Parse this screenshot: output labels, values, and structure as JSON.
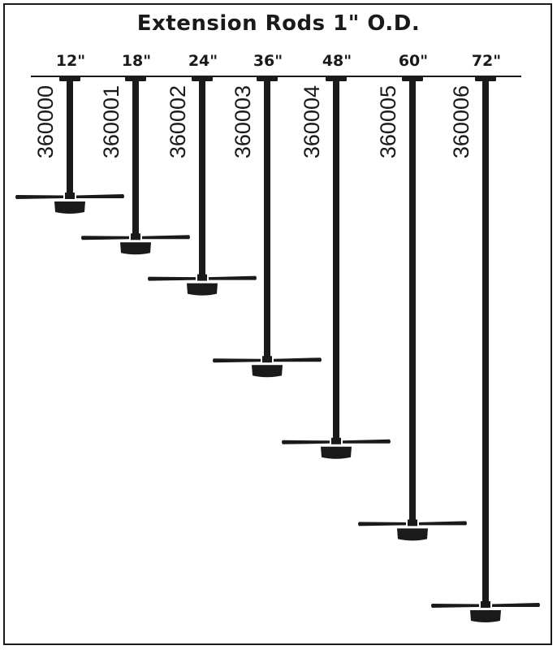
{
  "title": "Extension Rods 1\" O.D.",
  "colors": {
    "ink": "#1a1a1a",
    "background": "#ffffff"
  },
  "rods": [
    {
      "length_label": "12\"",
      "part_number": "360000",
      "length_in": 12
    },
    {
      "length_label": "18\"",
      "part_number": "360001",
      "length_in": 18
    },
    {
      "length_label": "24\"",
      "part_number": "360002",
      "length_in": 24
    },
    {
      "length_label": "36\"",
      "part_number": "360003",
      "length_in": 36
    },
    {
      "length_label": "48\"",
      "part_number": "360004",
      "length_in": 48
    },
    {
      "length_label": "60\"",
      "part_number": "360005",
      "length_in": 60
    },
    {
      "length_label": "72\"",
      "part_number": "360006",
      "length_in": 72
    }
  ]
}
